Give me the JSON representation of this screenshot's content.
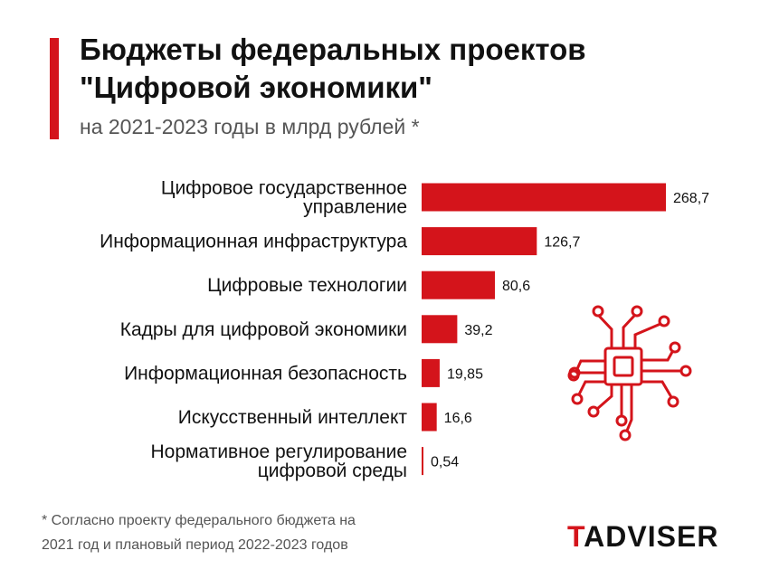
{
  "title_line1": "Бюджеты федеральных проектов",
  "title_line2": "\"Цифровой экономики\"",
  "subtitle": "на 2021-2023 годы в млрд рублей *",
  "footnote_line1": "* Согласно проекту федерального бюджета на",
  "footnote_line2": "2021 год и плановый период 2022-2023 годов",
  "logo_first": "T",
  "logo_rest": "ADVISER",
  "colors": {
    "accent": "#d4141b",
    "text": "#111111",
    "muted": "#555555"
  },
  "icons": [
    "microchip-icon"
  ],
  "chart_data": {
    "type": "bar",
    "orientation": "horizontal",
    "categories": [
      [
        "Цифровое государственное",
        "управление"
      ],
      [
        "Информационная инфраструктура"
      ],
      [
        "Цифровые технологии"
      ],
      [
        "Кадры для цифровой экономики"
      ],
      [
        "Информационная безопасность"
      ],
      [
        "Искусственный интеллект"
      ],
      [
        "Нормативное регулирование",
        "цифровой среды"
      ]
    ],
    "values": [
      268.7,
      126.7,
      80.6,
      39.2,
      19.85,
      16.6,
      0.54
    ],
    "value_labels": [
      "268,7",
      "126,7",
      "80,6",
      "39,2",
      "19,85",
      "16,6",
      "0,54"
    ],
    "xlim": [
      0,
      268.7
    ],
    "grid": false,
    "legend": "none"
  }
}
